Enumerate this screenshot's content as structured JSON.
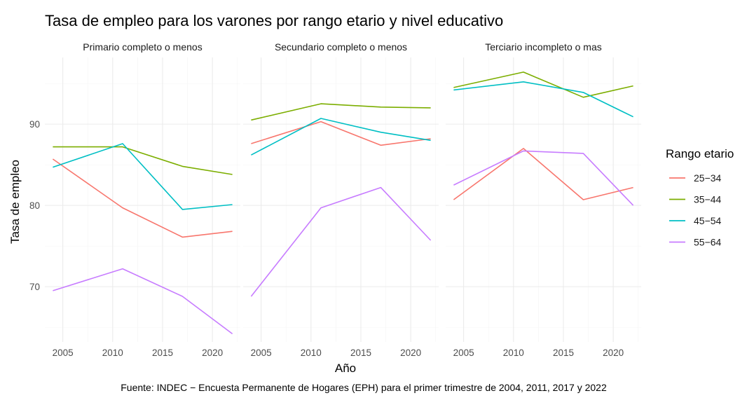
{
  "chart_data": {
    "type": "line",
    "title": "Tasa de empleo para los varones por rango etario y nivel educativo",
    "xlabel": "Año",
    "ylabel": "Tasa de empleo",
    "caption": "Fuente: INDEC − Encuesta Permanente de Hogares (EPH) para el primer trimestre de 2004, 2011, 2017 y 2022",
    "x": [
      2004,
      2011,
      2017,
      2022
    ],
    "xlim": [
      2003.2,
      2022.8
    ],
    "ylim": [
      63.2,
      98.2
    ],
    "x_ticks": [
      2005,
      2010,
      2015,
      2020
    ],
    "x_tick_labels": [
      "2005",
      "2010",
      "2015",
      "2020"
    ],
    "y_ticks": [
      70,
      80,
      90
    ],
    "y_tick_labels": [
      "70",
      "80",
      "90"
    ],
    "grid": true,
    "legend": {
      "title": "Rango etario",
      "position": "right",
      "entries": [
        "25−34",
        "35−44",
        "45−54",
        "55−64"
      ]
    },
    "colors": {
      "25−34": "#F8766D",
      "35−44": "#7CAE00",
      "45−54": "#00BFC4",
      "55−64": "#C77CFF"
    },
    "panels": [
      {
        "label": "Primario completo o menos",
        "series": [
          {
            "name": "25−34",
            "values": [
              85.7,
              79.7,
              76.1,
              76.8
            ]
          },
          {
            "name": "35−44",
            "values": [
              87.2,
              87.2,
              84.8,
              83.8
            ]
          },
          {
            "name": "45−54",
            "values": [
              84.7,
              87.6,
              79.5,
              80.1
            ]
          },
          {
            "name": "55−64",
            "values": [
              69.5,
              72.2,
              68.8,
              64.2
            ]
          }
        ]
      },
      {
        "label": "Secundario completo o menos",
        "series": [
          {
            "name": "25−34",
            "values": [
              87.6,
              90.3,
              87.4,
              88.2
            ]
          },
          {
            "name": "35−44",
            "values": [
              90.5,
              92.5,
              92.1,
              92.0
            ]
          },
          {
            "name": "45−54",
            "values": [
              86.2,
              90.7,
              89.0,
              88.0
            ]
          },
          {
            "name": "55−64",
            "values": [
              68.8,
              79.7,
              82.2,
              75.7
            ]
          }
        ]
      },
      {
        "label": "Terciario incompleto o mas",
        "series": [
          {
            "name": "25−34",
            "values": [
              80.7,
              87.0,
              80.7,
              82.2
            ]
          },
          {
            "name": "35−44",
            "values": [
              94.5,
              96.4,
              93.3,
              94.7
            ]
          },
          {
            "name": "45−54",
            "values": [
              94.2,
              95.2,
              93.9,
              90.9
            ]
          },
          {
            "name": "55−64",
            "values": [
              82.5,
              86.7,
              86.4,
              80.0
            ]
          }
        ]
      }
    ]
  }
}
